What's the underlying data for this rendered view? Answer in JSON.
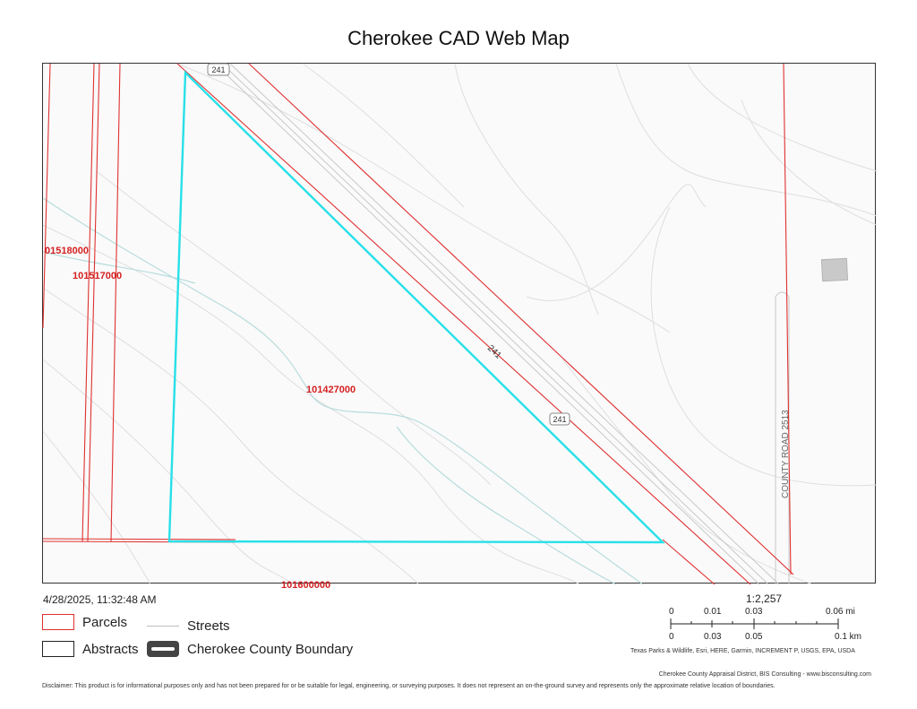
{
  "title": "Cherokee CAD Web Map",
  "timestamp": "4/28/2025, 11:32:48 AM",
  "map": {
    "parcel_labels": [
      {
        "id": "01518000",
        "color": "#d42020"
      },
      {
        "id": "101517000",
        "color": "#d42020"
      },
      {
        "id": "101427000",
        "color": "#d42020"
      },
      {
        "id": "101600000",
        "color": "#d42020"
      }
    ],
    "road_labels": {
      "route_shield_top": "241",
      "route_on_road": "241",
      "route_shield_lower": "241",
      "county_road": "COUNTY ROAD 2513"
    },
    "colors": {
      "parcel_line": "#e03030",
      "selected_parcel": "#27e0e8",
      "contour": "#dcdcdc",
      "stream": "#b8dcdc",
      "street": "#c8c8c8",
      "building": "#c9c9c9"
    }
  },
  "legend": {
    "parcels": "Parcels",
    "streets": "Streets",
    "abstracts": "Abstracts",
    "boundary": "Cherokee County Boundary"
  },
  "scale": {
    "ratio": "1:2,257",
    "mi_ticks": [
      "0",
      "0.01",
      "0.03",
      "0.06 mi"
    ],
    "km_ticks": [
      "0",
      "0.03",
      "0.05",
      "0.1 km"
    ]
  },
  "attribution": "Texas Parks & Wildlife, Esri, HERE, Garmin, INCREMENT P, USGS, EPA, USDA",
  "credit": "Cherokee County Appraisal District, BIS Consulting - www.bisconsulting.com",
  "disclaimer": "Disclaimer: This product is for informational purposes only and has not been prepared for or be suitable for legal, engineering, or surveying purposes. It does not represent an on-the-ground survey and represents only the approximate relative location of boundaries."
}
